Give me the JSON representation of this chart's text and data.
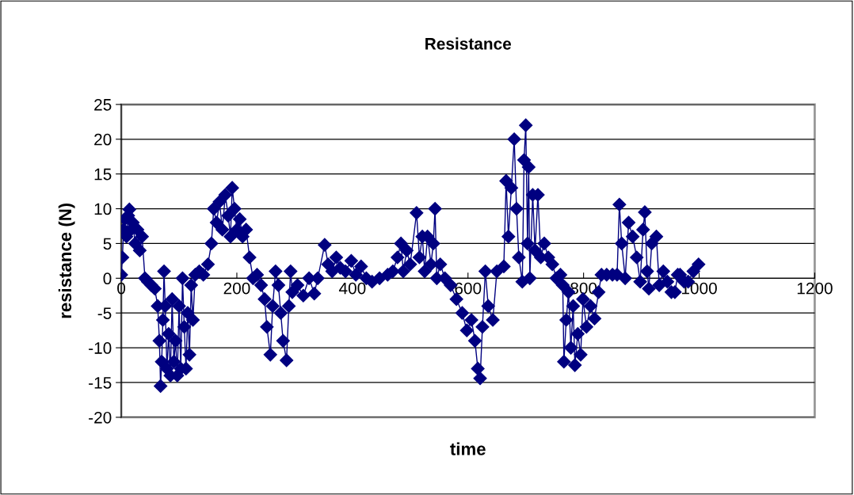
{
  "chart_data": {
    "type": "line",
    "title": "Resistance",
    "xlabel": "time",
    "ylabel": "resistance (N)",
    "xlim": [
      0,
      1200
    ],
    "xticks": [
      0,
      200,
      400,
      600,
      800,
      1000,
      1200
    ],
    "ylim": [
      -20,
      25
    ],
    "yticks": [
      -20,
      -15,
      -10,
      -5,
      0,
      5,
      10,
      15,
      20,
      25
    ],
    "grid": "y",
    "legend": false,
    "marker": "diamond",
    "line_style": "solid",
    "series": [
      {
        "color": "#000080",
        "x": [
          0,
          2,
          4,
          6,
          9,
          12,
          14,
          17,
          20,
          24,
          28,
          32,
          36,
          41,
          46,
          52,
          58,
          63,
          66,
          68,
          70,
          72,
          74,
          76,
          79,
          82,
          85,
          88,
          91,
          94,
          97,
          100,
          103,
          106,
          109,
          112,
          115,
          118,
          121,
          124,
          128,
          135,
          142,
          150,
          156,
          160,
          165,
          170,
          175,
          180,
          185,
          189,
          192,
          196,
          200,
          205,
          210,
          216,
          222,
          228,
          235,
          242,
          248,
          252,
          258,
          262,
          267,
          272,
          276,
          280,
          286,
          290,
          293,
          296,
          305,
          315,
          325,
          334,
          340,
          352,
          358,
          365,
          372,
          379,
          388,
          398,
          406,
          415,
          424,
          434,
          447,
          461,
          470,
          478,
          484,
          488,
          494,
          500,
          511,
          516,
          521,
          525,
          530,
          536,
          540,
          543,
          546,
          552,
          560,
          570,
          580,
          590,
          598,
          606,
          612,
          617,
          621,
          625,
          630,
          635,
          643,
          650,
          662,
          666,
          670,
          675,
          680,
          684,
          688,
          694,
          697,
          700,
          703,
          705,
          707,
          712,
          716,
          721,
          726,
          732,
          739,
          746,
          753,
          760,
          764,
          766,
          770,
          774,
          778,
          782,
          785,
          790,
          795,
          799,
          805,
          812,
          819,
          826,
          831,
          840,
          850,
          858,
          862,
          866,
          872,
          878,
          885,
          892,
          898,
          903,
          906,
          910,
          913,
          918,
          926,
          931,
          938,
          945,
          952,
          958,
          963,
          967,
          974,
          981,
          990,
          999
        ],
        "values": [
          0.5,
          3,
          7,
          8.5,
          6,
          9,
          9.9,
          7,
          8,
          5,
          7,
          4,
          6,
          0,
          -0.5,
          -1,
          -1.5,
          -4,
          -9,
          -15.5,
          -12,
          -6,
          1,
          -4,
          -13,
          -8,
          -14,
          -3,
          -12,
          -9,
          -14,
          -4,
          -13,
          0,
          -7,
          -13,
          -5,
          -11,
          -1,
          -6,
          0.5,
          1,
          0.5,
          2,
          5,
          10,
          8,
          11,
          7,
          12,
          9,
          6,
          13,
          10,
          7,
          8.5,
          6,
          7,
          3,
          0,
          0.5,
          -1,
          -3,
          -7,
          -11,
          -4,
          1,
          -1,
          -5,
          -9,
          -11.8,
          -4,
          1,
          -2,
          -1,
          -2.5,
          0,
          -2.2,
          0,
          4.8,
          2,
          1,
          3,
          1.5,
          1,
          2.5,
          0.5,
          1.7,
          0,
          -0.5,
          0,
          0.5,
          1,
          3,
          5,
          1,
          4,
          2,
          9.4,
          3,
          6,
          1,
          6,
          2,
          5,
          10,
          0,
          2,
          0,
          -1,
          -3,
          -5,
          -7.5,
          -6,
          -9,
          -13,
          -14.4,
          -7,
          1,
          -4,
          -6,
          1,
          1.7,
          14,
          6,
          13,
          20,
          10,
          3,
          -0.5,
          17,
          22,
          5,
          16,
          0,
          12,
          4,
          12,
          3,
          5,
          3,
          2,
          0,
          0.5,
          -1,
          -12,
          -6,
          -2,
          -10,
          -4,
          -12.5,
          -8,
          -11,
          -3,
          -7,
          -4,
          -5.8,
          -2,
          0.5,
          0.5,
          0.5,
          0.5,
          10.6,
          5,
          0,
          8,
          6,
          3,
          -0.5,
          7,
          9.5,
          1,
          -1.5,
          5,
          6,
          -1,
          1,
          -0.5,
          -2,
          -2,
          0.5,
          0.5,
          -0.5,
          -0.5,
          1,
          2
        ]
      }
    ]
  }
}
